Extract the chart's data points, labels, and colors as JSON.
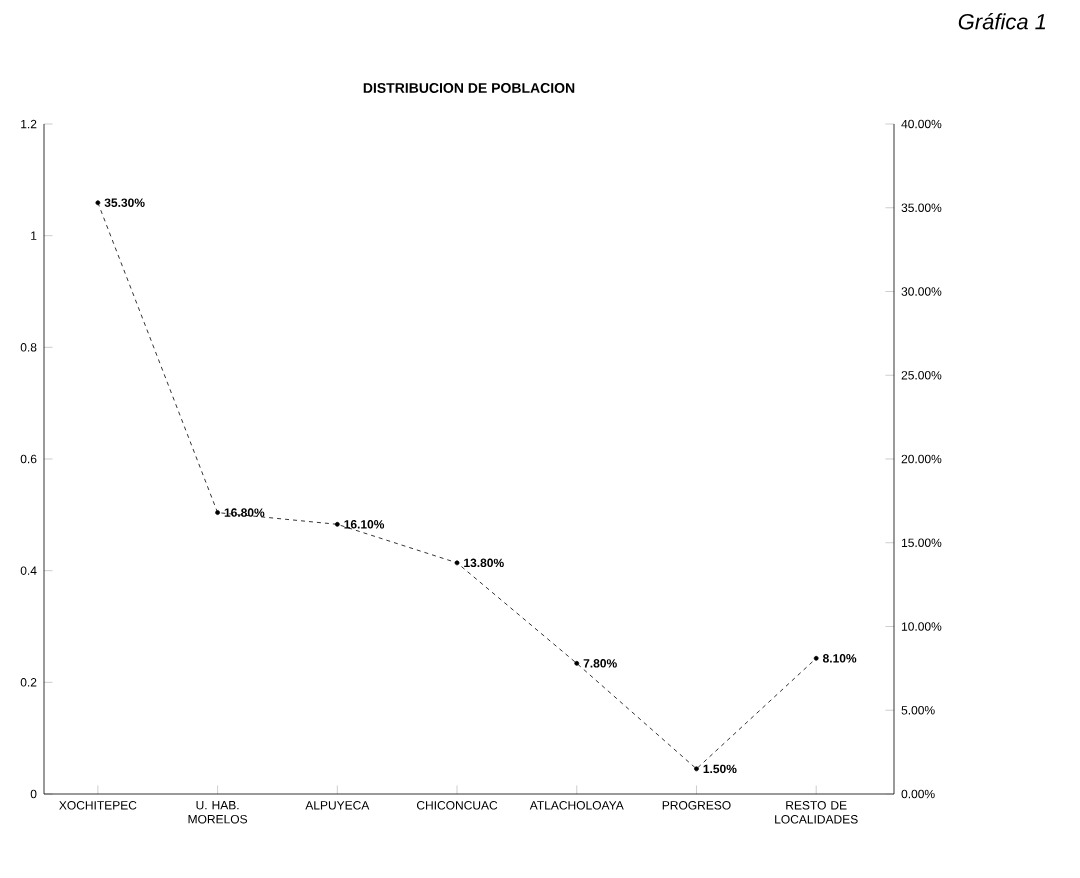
{
  "chart_data": {
    "type": "line",
    "title": "DISTRIBUCION DE POBLACION",
    "annotations": [
      "*Gráfica 1*"
    ],
    "categories": [
      "XOCHITEPEC",
      "U. HAB. MORELOS",
      "ALPUYECA",
      "CHICONCUAC",
      "ATLACHOLOAYA",
      "PROGRESO",
      "RESTO DE LOCALIDADES"
    ],
    "series": [
      {
        "color": "#000000",
        "axis": "y2",
        "values": [
          35.3,
          16.8,
          16.1,
          13.8,
          7.8,
          1.5,
          8.1
        ],
        "value_labels": [
          "35.30%",
          "16.80%",
          "16.10%",
          "13.80%",
          "7.80%",
          "1.50%",
          "8.10%"
        ]
      }
    ],
    "ylim": [
      0,
      1.2
    ],
    "yticks": [
      {
        "value": 0,
        "label": "0"
      },
      {
        "value": 0.2,
        "label": "0.2"
      },
      {
        "value": 0.4,
        "label": "0.4"
      },
      {
        "value": 0.6,
        "label": "0.6"
      },
      {
        "value": 0.8,
        "label": "0.8"
      },
      {
        "value": 1,
        "label": "1"
      },
      {
        "value": 1.2,
        "label": "1.2"
      }
    ],
    "y2lim": [
      0,
      40
    ],
    "y2ticks": [
      {
        "value": 0,
        "label": "0.00%"
      },
      {
        "value": 5,
        "label": "5.00%"
      },
      {
        "value": 10,
        "label": "10.00%"
      },
      {
        "value": 15,
        "label": "15.00%"
      },
      {
        "value": 20,
        "label": "20.00%"
      },
      {
        "value": 25,
        "label": "25.00%"
      },
      {
        "value": 30,
        "label": "30.00%"
      },
      {
        "value": 35,
        "label": "35.00%"
      },
      {
        "value": 40,
        "label": "40.00%"
      }
    ],
    "grid": false,
    "legend": false,
    "marker": "circle",
    "line_style": "dashed"
  }
}
